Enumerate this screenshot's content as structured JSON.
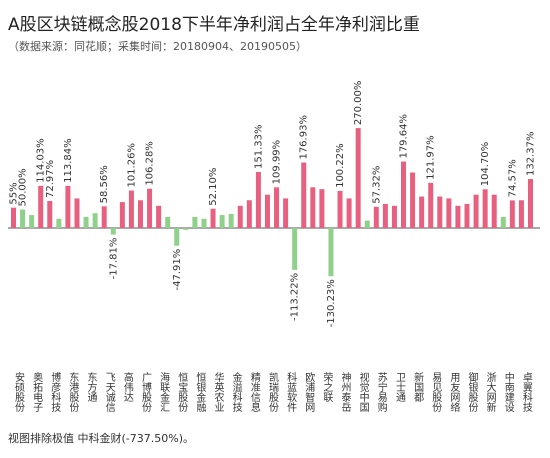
{
  "chart_data": {
    "type": "bar",
    "title": "A股区块链概念股2018下半年净利润占全年净利润比重",
    "subtitle": "（数据来源：同花顺；采集时间：20180904、20190505）",
    "footnote": "视图排除极值 中科金财(-737.50%)。",
    "categories": [
      "安硕股份",
      null,
      "奥拓电子",
      null,
      "博彦科技",
      null,
      "东港股份",
      null,
      "东方通",
      null,
      "飞天诚信",
      null,
      "高伟达",
      null,
      "广博股份",
      null,
      "海联金汇",
      null,
      "恒宝股份",
      null,
      "恒银金融",
      null,
      "华英农业",
      null,
      "金溢科技",
      null,
      "精准信息",
      null,
      "凯瑞股份",
      null,
      "科蓝软件",
      null,
      "欧浦智网",
      null,
      "荣之联",
      null,
      "神州泰岳",
      null,
      "视觉中国",
      null,
      "苏宁易购",
      null,
      "卫士通",
      null,
      "新国都",
      null,
      "易见股份",
      null,
      "用友网络",
      null,
      "御银股份",
      null,
      "浙大网新",
      null,
      "中南建设",
      null,
      "卓翼科技",
      null
    ],
    "values": [
      55,
      50,
      35,
      114.03,
      72.97,
      25,
      113.84,
      80,
      30,
      40,
      58.56,
      -17.81,
      70,
      101.26,
      75,
      106.28,
      60,
      30,
      -47.91,
      -5,
      30,
      25,
      52.1,
      35,
      38,
      60,
      75,
      151.33,
      90,
      109.99,
      80,
      -113.22,
      176.93,
      110,
      105,
      -130.23,
      100.22,
      80,
      270,
      20,
      57.32,
      65,
      60,
      179.64,
      150,
      85,
      121.97,
      85,
      80,
      60,
      65,
      90,
      104.7,
      90,
      30,
      74.57,
      75,
      132.37
    ],
    "value_labels": [
      "55%",
      "50.00%",
      null,
      "114.03%",
      "72.97%",
      null,
      "113.84%",
      null,
      null,
      null,
      "58.56%",
      "-17.81%",
      null,
      "101.26%",
      null,
      "106.28%",
      null,
      null,
      "-47.91%",
      null,
      null,
      null,
      "52.10%",
      null,
      null,
      null,
      null,
      "151.33%",
      null,
      "109.99%",
      null,
      "-113.22%",
      "176.93%",
      null,
      null,
      "-130.23%",
      "100.22%",
      null,
      "270.00%",
      null,
      "57.32%",
      null,
      null,
      "179.64%",
      null,
      null,
      "121.97%",
      null,
      null,
      null,
      null,
      null,
      "104.70%",
      null,
      null,
      "74.57%",
      null,
      "132.37%"
    ],
    "colors": [
      "#e8607f",
      "#8fd18a",
      "#8fd18a",
      "#e8607f",
      "#e8607f",
      "#8fd18a",
      "#e8607f",
      "#e8607f",
      "#8fd18a",
      "#8fd18a",
      "#e8607f",
      "#8fd18a",
      "#e8607f",
      "#e8607f",
      "#e8607f",
      "#e8607f",
      "#e8607f",
      "#8fd18a",
      "#8fd18a",
      "#8fd18a",
      "#8fd18a",
      "#8fd18a",
      "#e8607f",
      "#8fd18a",
      "#8fd18a",
      "#e8607f",
      "#e8607f",
      "#e8607f",
      "#e8607f",
      "#e8607f",
      "#e8607f",
      "#8fd18a",
      "#e8607f",
      "#e8607f",
      "#e8607f",
      "#8fd18a",
      "#e8607f",
      "#e8607f",
      "#e8607f",
      "#8fd18a",
      "#e8607f",
      "#e8607f",
      "#e8607f",
      "#e8607f",
      "#e8607f",
      "#e8607f",
      "#e8607f",
      "#e8607f",
      "#e8607f",
      "#e8607f",
      "#e8607f",
      "#e8607f",
      "#e8607f",
      "#e8607f",
      "#8fd18a",
      "#e8607f",
      "#e8607f",
      "#e8607f"
    ]
  }
}
